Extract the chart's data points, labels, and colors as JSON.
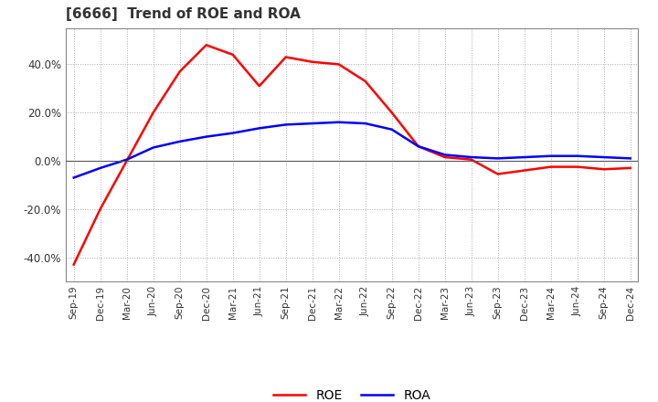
{
  "title": "[6666]  Trend of ROE and ROA",
  "x_labels": [
    "Sep-19",
    "Dec-19",
    "Mar-20",
    "Jun-20",
    "Sep-20",
    "Dec-20",
    "Mar-21",
    "Jun-21",
    "Sep-21",
    "Dec-21",
    "Mar-22",
    "Jun-22",
    "Sep-22",
    "Dec-22",
    "Mar-23",
    "Jun-23",
    "Sep-23",
    "Dec-23",
    "Mar-24",
    "Jun-24",
    "Sep-24",
    "Dec-24"
  ],
  "roe": [
    -43.0,
    -20.0,
    0.0,
    20.0,
    37.0,
    48.0,
    44.0,
    31.0,
    43.0,
    41.0,
    40.0,
    33.0,
    20.0,
    6.0,
    1.5,
    0.5,
    -5.5,
    -4.0,
    -2.5,
    -2.5,
    -3.5,
    -3.0
  ],
  "roa": [
    -7.0,
    -3.0,
    0.5,
    5.5,
    8.0,
    10.0,
    11.5,
    13.5,
    15.0,
    15.5,
    16.0,
    15.5,
    13.0,
    6.0,
    2.5,
    1.5,
    1.0,
    1.5,
    2.0,
    2.0,
    1.5,
    1.0
  ],
  "roe_color": "#ff0000",
  "roa_color": "#0000ff",
  "ylim": [
    -50,
    55
  ],
  "yticks": [
    -40,
    -20,
    0,
    20,
    40
  ],
  "background_color": "#ffffff",
  "grid_color": "#aaaaaa",
  "title_fontsize": 11,
  "legend_labels": [
    "ROE",
    "ROA"
  ],
  "line_width": 1.8
}
